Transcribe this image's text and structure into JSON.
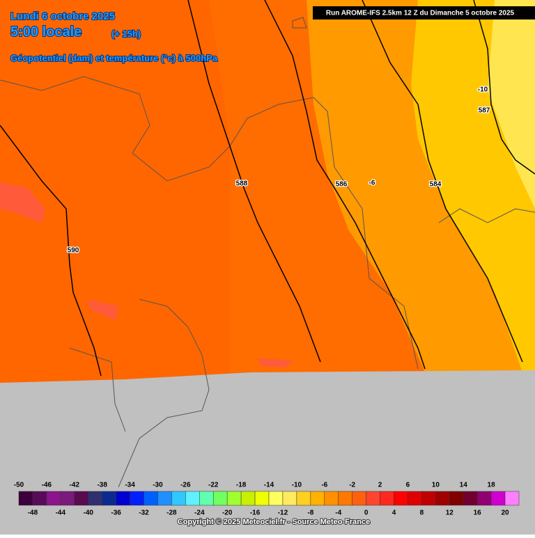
{
  "header": {
    "date": "Lundi 6 octobre 2025",
    "time": "5:00 locale",
    "lead": "(+ 15h)",
    "field": "Géopotentiel (dam) et température (°c) à 500hPa",
    "run": "Run AROME-IFS 2.5km 12 Z du Dimanche 5 octobre 2025"
  },
  "contour_labels": [
    "590",
    "588",
    "586",
    "-6",
    "584",
    "-10",
    "587"
  ],
  "colorbar": {
    "top_labels": [
      "-50",
      "-46",
      "-42",
      "-38",
      "-34",
      "-30",
      "-26",
      "-22",
      "-18",
      "-14",
      "-10",
      "-6",
      "-2",
      "2",
      "6",
      "10",
      "14",
      "18"
    ],
    "bottom_labels": [
      "-48",
      "-44",
      "-40",
      "-36",
      "-32",
      "-28",
      "-24",
      "-20",
      "-16",
      "-12",
      "-8",
      "-4",
      "0",
      "4",
      "8",
      "12",
      "16",
      "20"
    ],
    "colors": [
      "#3c003c",
      "#5a0a5a",
      "#8c148c",
      "#7a1a7a",
      "#5a0a50",
      "#303070",
      "#0a2a90",
      "#0000d0",
      "#0020ff",
      "#0060ff",
      "#2090ff",
      "#30c8ff",
      "#60f0ff",
      "#60ffb0",
      "#70ff60",
      "#a0ff30",
      "#c8f000",
      "#f0ff00",
      "#ffff60",
      "#ffea60",
      "#ffd020",
      "#ffb000",
      "#ff9000",
      "#ff7800",
      "#ff6010",
      "#ff4530",
      "#ff2820",
      "#ff0000",
      "#e00000",
      "#c00000",
      "#a00000",
      "#800000",
      "#700030",
      "#900070",
      "#d000d0",
      "#ff80ff"
    ]
  },
  "copyright": "Copyright © 2025 Meteociel.fr - Source Meteo-France"
}
